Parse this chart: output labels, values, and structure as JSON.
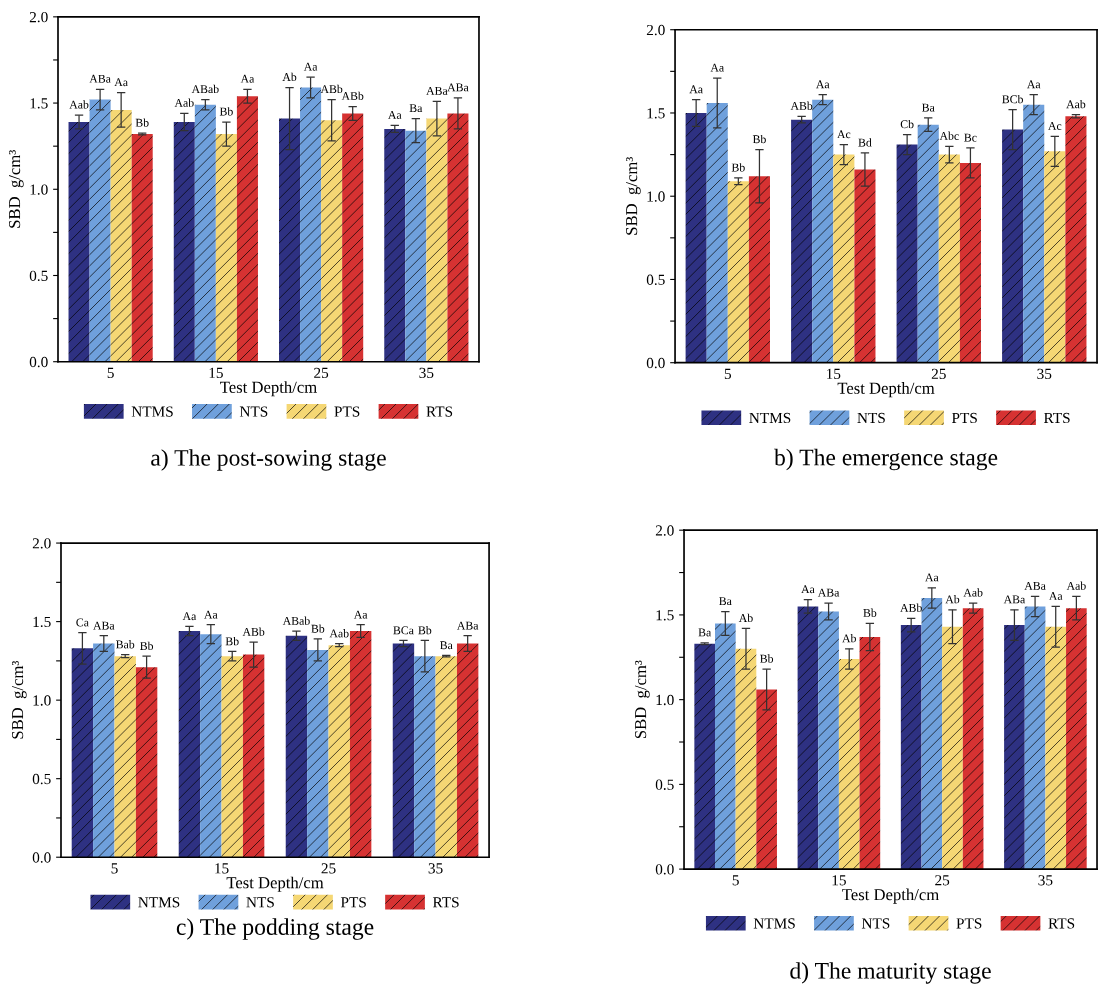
{
  "chart_data": [
    {
      "type": "bar",
      "title": "a) The post-sowing stage",
      "xlabel": "Test Depth/cm",
      "ylabel": "SBD  g/cm³",
      "categories": [
        "5",
        "15",
        "25",
        "35"
      ],
      "ylim": [
        0,
        2.0
      ],
      "yticks": [
        {
          "value": 0,
          "label": "0.0"
        },
        {
          "value": 0.25,
          "label": null
        },
        {
          "value": 0.5,
          "label": "0.5"
        },
        {
          "value": 0.75,
          "label": null
        },
        {
          "value": 1.0,
          "label": "1.0"
        },
        {
          "value": 1.25,
          "label": null
        },
        {
          "value": 1.5,
          "label": "1.5"
        },
        {
          "value": 1.75,
          "label": null
        },
        {
          "value": 2.0,
          "label": "2.0"
        }
      ],
      "legend": "bottom",
      "grid": false,
      "series": [
        {
          "name": "NTMS",
          "color": "#2e3182",
          "values": [
            1.39,
            1.39,
            1.41,
            1.35
          ],
          "errors": [
            0.04,
            0.05,
            0.18,
            0.02
          ],
          "value_labels": [
            "Aab",
            "Aab",
            "Ab",
            "Aa"
          ]
        },
        {
          "name": "NTS",
          "color": "#6fa0dc",
          "values": [
            1.52,
            1.49,
            1.59,
            1.34
          ],
          "errors": [
            0.06,
            0.03,
            0.06,
            0.07
          ],
          "value_labels": [
            "ABa",
            "ABab",
            "Aa",
            "Ba"
          ]
        },
        {
          "name": "PTS",
          "color": "#f5d774",
          "values": [
            1.46,
            1.32,
            1.4,
            1.41
          ],
          "errors": [
            0.1,
            0.07,
            0.12,
            0.1
          ],
          "value_labels": [
            "Aa",
            "Bb",
            "ABb",
            "ABa"
          ]
        },
        {
          "name": "RTS",
          "color": "#d63232",
          "values": [
            1.32,
            1.54,
            1.44,
            1.44
          ],
          "errors": [
            0.005,
            0.04,
            0.04,
            0.09
          ],
          "value_labels": [
            "Bb",
            "Aa",
            "ABb",
            "ABa"
          ]
        }
      ]
    },
    {
      "type": "bar",
      "title": "b) The emergence stage",
      "xlabel": "Test Depth/cm",
      "ylabel": "SBD  g/cm³",
      "categories": [
        "5",
        "15",
        "25",
        "35"
      ],
      "ylim": [
        0,
        2.0
      ],
      "yticks": [
        {
          "value": 0,
          "label": "0.0"
        },
        {
          "value": 0.25,
          "label": null
        },
        {
          "value": 0.5,
          "label": "0.5"
        },
        {
          "value": 0.75,
          "label": null
        },
        {
          "value": 1.0,
          "label": "1.0"
        },
        {
          "value": 1.25,
          "label": null
        },
        {
          "value": 1.5,
          "label": "1.5"
        },
        {
          "value": 1.75,
          "label": null
        },
        {
          "value": 2.0,
          "label": "2.0"
        }
      ],
      "legend": "bottom",
      "grid": false,
      "series": [
        {
          "name": "NTMS",
          "color": "#2e3182",
          "values": [
            1.5,
            1.46,
            1.31,
            1.4
          ],
          "errors": [
            0.08,
            0.02,
            0.06,
            0.12
          ],
          "value_labels": [
            "Aa",
            "ABb",
            "Cb",
            "BCb"
          ]
        },
        {
          "name": "NTS",
          "color": "#6fa0dc",
          "values": [
            1.56,
            1.58,
            1.43,
            1.55
          ],
          "errors": [
            0.15,
            0.03,
            0.04,
            0.06
          ],
          "value_labels": [
            "Aa",
            "Aa",
            "Ba",
            "Aa"
          ]
        },
        {
          "name": "PTS",
          "color": "#f5d774",
          "values": [
            1.09,
            1.25,
            1.25,
            1.27
          ],
          "errors": [
            0.02,
            0.06,
            0.05,
            0.09
          ],
          "value_labels": [
            "Bb",
            "Ac",
            "Abc",
            "Ac"
          ]
        },
        {
          "name": "RTS",
          "color": "#d63232",
          "values": [
            1.12,
            1.16,
            1.2,
            1.48
          ],
          "errors": [
            0.16,
            0.1,
            0.09,
            0.01
          ],
          "value_labels": [
            "Bb",
            "Bd",
            "Bc",
            "Aab"
          ]
        }
      ]
    },
    {
      "type": "bar",
      "title": "c) The podding stage",
      "xlabel": "Test Depth/cm",
      "ylabel": "SBD  g/cm³",
      "categories": [
        "5",
        "15",
        "25",
        "35"
      ],
      "ylim": [
        0,
        2.0
      ],
      "yticks": [
        {
          "value": 0,
          "label": "0.0"
        },
        {
          "value": 0.25,
          "label": null
        },
        {
          "value": 0.5,
          "label": "0.5"
        },
        {
          "value": 0.75,
          "label": null
        },
        {
          "value": 1.0,
          "label": "1.0"
        },
        {
          "value": 1.25,
          "label": null
        },
        {
          "value": 1.5,
          "label": "1.5"
        },
        {
          "value": 1.75,
          "label": null
        },
        {
          "value": 2.0,
          "label": "2.0"
        }
      ],
      "legend": "bottom",
      "grid": false,
      "series": [
        {
          "name": "NTMS",
          "color": "#2e3182",
          "values": [
            1.33,
            1.44,
            1.41,
            1.36
          ],
          "errors": [
            0.1,
            0.03,
            0.03,
            0.02
          ],
          "value_labels": [
            "Ca",
            "Aa",
            "ABab",
            "BCa"
          ]
        },
        {
          "name": "NTS",
          "color": "#6fa0dc",
          "values": [
            1.36,
            1.42,
            1.32,
            1.28
          ],
          "errors": [
            0.05,
            0.06,
            0.07,
            0.1
          ],
          "value_labels": [
            "ABa",
            "Aa",
            "Bb",
            "Bb"
          ]
        },
        {
          "name": "PTS",
          "color": "#f5d774",
          "values": [
            1.28,
            1.28,
            1.35,
            1.28
          ],
          "errors": [
            0.01,
            0.03,
            0.01,
            0.005
          ],
          "value_labels": [
            "Bab",
            "Bb",
            "Aab",
            "Ba"
          ]
        },
        {
          "name": "RTS",
          "color": "#d63232",
          "values": [
            1.21,
            1.29,
            1.44,
            1.36
          ],
          "errors": [
            0.07,
            0.08,
            0.04,
            0.05
          ],
          "value_labels": [
            "Bb",
            "ABb",
            "Aa",
            "ABa"
          ]
        }
      ]
    },
    {
      "type": "bar",
      "title": "d) The maturity stage",
      "xlabel": "Test Depth/cm",
      "ylabel": "SBD  g/cm³",
      "categories": [
        "5",
        "15",
        "25",
        "35"
      ],
      "ylim": [
        0,
        2.0
      ],
      "yticks": [
        {
          "value": 0,
          "label": "0.0"
        },
        {
          "value": 0.25,
          "label": null
        },
        {
          "value": 0.5,
          "label": "0.5"
        },
        {
          "value": 0.75,
          "label": null
        },
        {
          "value": 1.0,
          "label": "1.0"
        },
        {
          "value": 1.25,
          "label": null
        },
        {
          "value": 1.5,
          "label": "1.5"
        },
        {
          "value": 1.75,
          "label": null
        },
        {
          "value": 2.0,
          "label": "2.0"
        }
      ],
      "legend": "bottom",
      "grid": false,
      "series": [
        {
          "name": "NTMS",
          "color": "#2e3182",
          "values": [
            1.33,
            1.55,
            1.44,
            1.44
          ],
          "errors": [
            0.005,
            0.04,
            0.04,
            0.09
          ],
          "value_labels": [
            "Ba",
            "Aa",
            "ABb",
            "ABa"
          ]
        },
        {
          "name": "NTS",
          "color": "#6fa0dc",
          "values": [
            1.45,
            1.52,
            1.6,
            1.55
          ],
          "errors": [
            0.07,
            0.05,
            0.06,
            0.06
          ],
          "value_labels": [
            "Ba",
            "ABa",
            "Aa",
            "ABa"
          ]
        },
        {
          "name": "PTS",
          "color": "#f5d774",
          "values": [
            1.3,
            1.24,
            1.43,
            1.43
          ],
          "errors": [
            0.12,
            0.06,
            0.1,
            0.12
          ],
          "value_labels": [
            "Ab",
            "Ab",
            "Ab",
            "Aa"
          ]
        },
        {
          "name": "RTS",
          "color": "#d63232",
          "values": [
            1.06,
            1.37,
            1.54,
            1.54
          ],
          "errors": [
            0.12,
            0.08,
            0.03,
            0.07
          ],
          "value_labels": [
            "Bb",
            "Bb",
            "Aab",
            "Aab"
          ]
        }
      ]
    }
  ]
}
